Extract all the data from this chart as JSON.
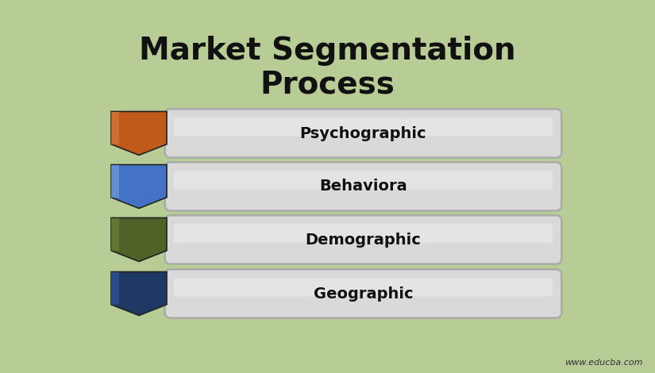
{
  "title": "Market Segmentation\nProcess",
  "background_color": "#b8cc96",
  "items": [
    {
      "label": "Psychographic",
      "arrow_color": "#c05a1a",
      "arrow_light": "#d4753a"
    },
    {
      "label": "Behaviora",
      "arrow_color": "#4472c4",
      "arrow_light": "#7099d8"
    },
    {
      "label": "Demographic",
      "arrow_color": "#4f6228",
      "arrow_light": "#6a7f3a"
    },
    {
      "label": "Geographic",
      "arrow_color": "#1f3864",
      "arrow_light": "#2e5496"
    }
  ],
  "box_facecolor": "#d9d9d9",
  "box_edge_color": "#aaaaaa",
  "text_color": "#111111",
  "watermark": "www.educba.com",
  "title_fontsize": 28,
  "label_fontsize": 14
}
